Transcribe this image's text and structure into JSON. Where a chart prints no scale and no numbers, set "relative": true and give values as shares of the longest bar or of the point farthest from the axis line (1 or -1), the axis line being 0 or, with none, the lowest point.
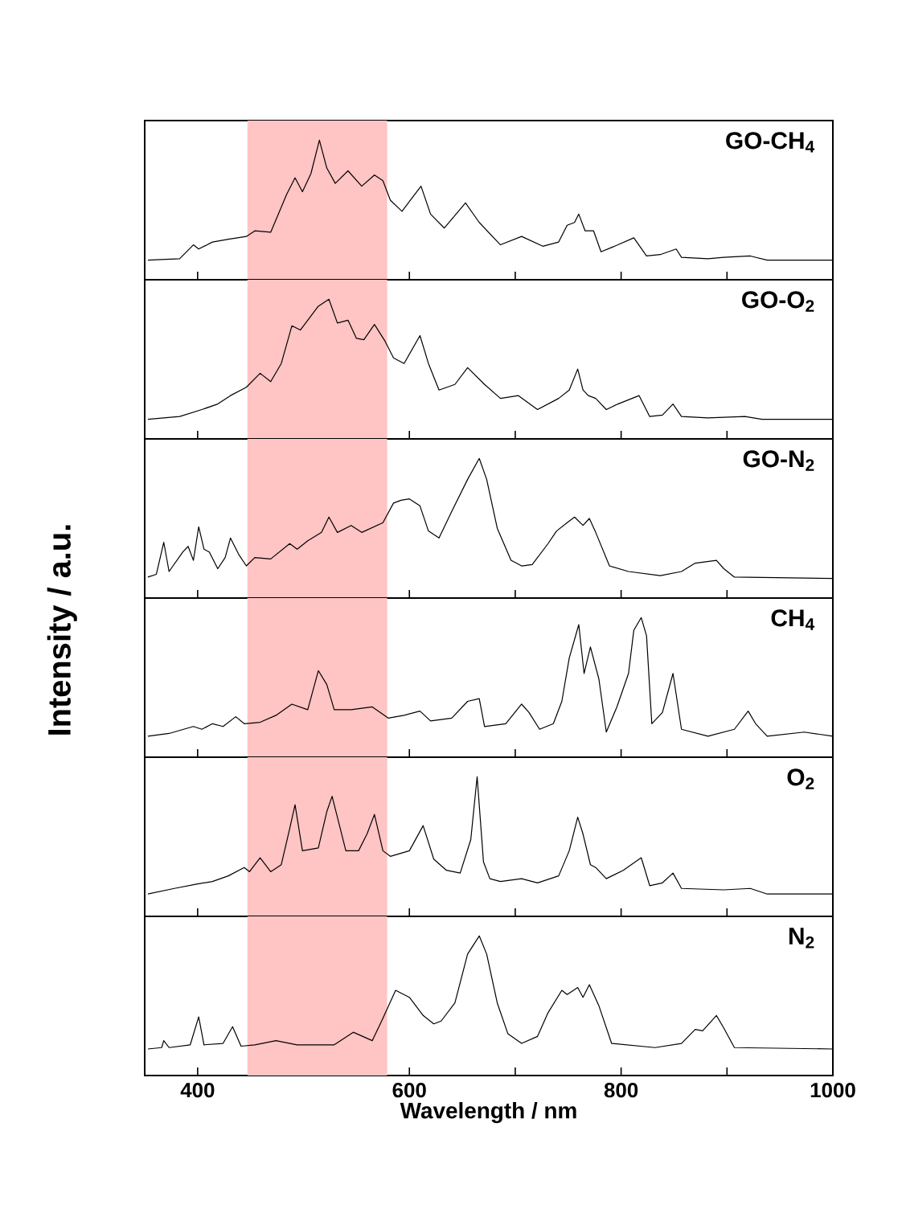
{
  "chart_data": [
    {
      "type": "line",
      "relative": true,
      "xlim": [
        350,
        1000
      ],
      "xticks": [
        400,
        {
          "value": 500,
          "label": null
        },
        600,
        {
          "value": 700,
          "label": null
        },
        800,
        {
          "value": 900,
          "label": null
        },
        1000
      ],
      "tick_labels": false,
      "bands": [
        {
          "axis": "x",
          "from": 447,
          "to": 579,
          "color": "#ffc4c4"
        }
      ],
      "x": [
        353,
        383,
        396,
        401,
        414,
        429,
        446,
        454,
        469,
        484,
        492,
        499,
        507,
        515,
        522,
        530,
        542,
        555,
        567,
        575,
        582,
        593,
        611,
        620,
        633,
        653,
        666,
        686,
        706,
        726,
        741,
        749,
        756,
        760,
        766,
        774,
        781,
        797,
        812,
        824,
        837,
        852,
        857,
        882,
        897,
        922,
        938,
        1000
      ],
      "series": [
        {
          "name": "GO-CH$_{4}$",
          "color": "#000000",
          "values": [
            0.14,
            0.15,
            0.25,
            0.22,
            0.27,
            0.29,
            0.31,
            0.35,
            0.34,
            0.61,
            0.73,
            0.63,
            0.76,
            1.0,
            0.8,
            0.69,
            0.78,
            0.67,
            0.75,
            0.71,
            0.57,
            0.49,
            0.67,
            0.47,
            0.37,
            0.55,
            0.41,
            0.25,
            0.31,
            0.24,
            0.27,
            0.39,
            0.41,
            0.47,
            0.35,
            0.35,
            0.2,
            0.25,
            0.3,
            0.17,
            0.18,
            0.22,
            0.16,
            0.15,
            0.16,
            0.17,
            0.14,
            0.14
          ]
        }
      ]
    },
    {
      "type": "line",
      "relative": true,
      "xlim": [
        350,
        1000
      ],
      "xticks": [
        400,
        {
          "value": 500,
          "label": null
        },
        600,
        {
          "value": 700,
          "label": null
        },
        800,
        {
          "value": 900,
          "label": null
        },
        1000
      ],
      "tick_labels": false,
      "bands": [
        {
          "axis": "x",
          "from": 447,
          "to": 579,
          "color": "#ffc4c4"
        }
      ],
      "x": [
        353,
        383,
        404,
        419,
        431,
        446,
        459,
        469,
        479,
        489,
        497,
        504,
        514,
        524,
        532,
        542,
        550,
        557,
        567,
        577,
        585,
        595,
        610,
        618,
        628,
        643,
        655,
        671,
        686,
        703,
        721,
        741,
        751,
        759,
        764,
        769,
        776,
        786,
        797,
        817,
        827,
        839,
        849,
        857,
        882,
        917,
        933,
        1000
      ],
      "series": [
        {
          "name": "GO-O$_{2}$",
          "color": "#000000",
          "values": [
            0.14,
            0.16,
            0.21,
            0.25,
            0.31,
            0.37,
            0.47,
            0.41,
            0.54,
            0.81,
            0.78,
            0.85,
            0.95,
            1.0,
            0.83,
            0.85,
            0.72,
            0.71,
            0.82,
            0.7,
            0.58,
            0.54,
            0.74,
            0.54,
            0.35,
            0.39,
            0.51,
            0.39,
            0.29,
            0.31,
            0.21,
            0.29,
            0.35,
            0.5,
            0.35,
            0.31,
            0.29,
            0.21,
            0.25,
            0.31,
            0.16,
            0.17,
            0.25,
            0.16,
            0.15,
            0.16,
            0.14,
            0.14
          ]
        }
      ]
    },
    {
      "type": "line",
      "relative": true,
      "xlim": [
        350,
        1000
      ],
      "xticks": [
        400,
        {
          "value": 500,
          "label": null
        },
        600,
        {
          "value": 700,
          "label": null
        },
        800,
        {
          "value": 900,
          "label": null
        },
        1000
      ],
      "tick_labels": false,
      "bands": [
        {
          "axis": "x",
          "from": 447,
          "to": 579,
          "color": "#ffc4c4"
        }
      ],
      "x": [
        353,
        361,
        368,
        373,
        386,
        391,
        396,
        401,
        406,
        411,
        419,
        426,
        431,
        439,
        446,
        454,
        469,
        487,
        494,
        504,
        517,
        524,
        532,
        545,
        555,
        575,
        585,
        592,
        600,
        610,
        618,
        628,
        640,
        655,
        666,
        673,
        683,
        696,
        706,
        716,
        731,
        739,
        749,
        756,
        764,
        770,
        776,
        789,
        807,
        837,
        857,
        870,
        880,
        890,
        897,
        907,
        1000
      ],
      "series": [
        {
          "name": "GO-N$_{2}$",
          "color": "#000000",
          "values": [
            0.15,
            0.17,
            0.4,
            0.19,
            0.33,
            0.37,
            0.27,
            0.51,
            0.35,
            0.33,
            0.21,
            0.29,
            0.43,
            0.31,
            0.23,
            0.29,
            0.28,
            0.39,
            0.35,
            0.41,
            0.47,
            0.58,
            0.47,
            0.52,
            0.47,
            0.54,
            0.68,
            0.7,
            0.71,
            0.66,
            0.48,
            0.43,
            0.62,
            0.85,
            1.0,
            0.85,
            0.5,
            0.27,
            0.23,
            0.24,
            0.39,
            0.48,
            0.54,
            0.58,
            0.52,
            0.57,
            0.47,
            0.23,
            0.19,
            0.16,
            0.19,
            0.25,
            0.26,
            0.27,
            0.21,
            0.15,
            0.14
          ]
        }
      ]
    },
    {
      "type": "line",
      "relative": true,
      "xlim": [
        350,
        1000
      ],
      "xticks": [
        400,
        {
          "value": 500,
          "label": null
        },
        600,
        {
          "value": 700,
          "label": null
        },
        800,
        {
          "value": 900,
          "label": null
        },
        1000
      ],
      "tick_labels": false,
      "ylabel": "Intensity / a.u.",
      "bands": [
        {
          "axis": "x",
          "from": 447,
          "to": 579,
          "color": "#ffc4c4"
        }
      ],
      "x": [
        353,
        373,
        396,
        404,
        414,
        424,
        436,
        444,
        459,
        474,
        489,
        504,
        514,
        522,
        529,
        545,
        565,
        580,
        595,
        610,
        620,
        640,
        655,
        666,
        671,
        691,
        706,
        713,
        723,
        736,
        744,
        751,
        760,
        765,
        771,
        779,
        786,
        796,
        807,
        812,
        819,
        824,
        829,
        839,
        849,
        857,
        882,
        907,
        920,
        927,
        938,
        973,
        1000
      ],
      "series": [
        {
          "name": "CH$_{4}$",
          "color": "#000000",
          "values": [
            0.15,
            0.17,
            0.22,
            0.2,
            0.24,
            0.22,
            0.29,
            0.24,
            0.25,
            0.3,
            0.38,
            0.34,
            0.62,
            0.52,
            0.34,
            0.34,
            0.36,
            0.28,
            0.3,
            0.33,
            0.26,
            0.28,
            0.4,
            0.42,
            0.22,
            0.24,
            0.38,
            0.32,
            0.2,
            0.24,
            0.4,
            0.71,
            0.95,
            0.6,
            0.79,
            0.56,
            0.18,
            0.36,
            0.6,
            0.91,
            1.0,
            0.87,
            0.24,
            0.32,
            0.6,
            0.2,
            0.15,
            0.2,
            0.33,
            0.24,
            0.15,
            0.18,
            0.15
          ]
        }
      ]
    },
    {
      "type": "line",
      "relative": true,
      "xlim": [
        350,
        1000
      ],
      "xticks": [
        400,
        {
          "value": 500,
          "label": null
        },
        600,
        {
          "value": 700,
          "label": null
        },
        800,
        {
          "value": 900,
          "label": null
        },
        1000
      ],
      "tick_labels": false,
      "bands": [
        {
          "axis": "x",
          "from": 447,
          "to": 579,
          "color": "#ffc4c4"
        }
      ],
      "x": [
        353,
        378,
        398,
        414,
        429,
        444,
        449,
        459,
        469,
        479,
        487,
        492,
        499,
        514,
        522,
        527,
        532,
        540,
        552,
        560,
        567,
        575,
        582,
        600,
        613,
        623,
        635,
        648,
        658,
        664,
        670,
        676,
        686,
        706,
        721,
        741,
        751,
        759,
        764,
        771,
        776,
        786,
        802,
        819,
        827,
        839,
        849,
        857,
        897,
        922,
        938,
        1000
      ],
      "series": [
        {
          "name": "O$_{2}$",
          "color": "#000000",
          "values": [
            0.16,
            0.2,
            0.23,
            0.25,
            0.29,
            0.35,
            0.32,
            0.42,
            0.32,
            0.37,
            0.63,
            0.8,
            0.47,
            0.49,
            0.75,
            0.86,
            0.71,
            0.47,
            0.47,
            0.59,
            0.73,
            0.47,
            0.43,
            0.47,
            0.65,
            0.41,
            0.33,
            0.31,
            0.55,
            1.0,
            0.39,
            0.27,
            0.25,
            0.27,
            0.24,
            0.29,
            0.47,
            0.71,
            0.59,
            0.37,
            0.35,
            0.27,
            0.33,
            0.42,
            0.22,
            0.24,
            0.31,
            0.2,
            0.19,
            0.2,
            0.16,
            0.16
          ]
        }
      ]
    },
    {
      "type": "line",
      "relative": true,
      "xlim": [
        350,
        1000
      ],
      "xticks": [
        400,
        {
          "value": 500,
          "label": null
        },
        600,
        {
          "value": 700,
          "label": null
        },
        800,
        {
          "value": 900,
          "label": null
        },
        1000
      ],
      "tick_labels": "x",
      "xlabel": "Wavelength / nm",
      "bands": [
        {
          "axis": "x",
          "from": 447,
          "to": 579,
          "color": "#ffc4c4"
        }
      ],
      "x": [
        353,
        366,
        368,
        373,
        393,
        401,
        406,
        424,
        433,
        441,
        454,
        474,
        494,
        529,
        547,
        565,
        575,
        587,
        600,
        613,
        623,
        630,
        643,
        655,
        666,
        673,
        683,
        693,
        706,
        721,
        731,
        744,
        749,
        759,
        764,
        770,
        779,
        791,
        832,
        857,
        870,
        877,
        890,
        897,
        907,
        1000
      ],
      "series": [
        {
          "name": "N$_{2}$",
          "color": "#000000",
          "values": [
            0.19,
            0.2,
            0.25,
            0.2,
            0.22,
            0.42,
            0.22,
            0.23,
            0.35,
            0.21,
            0.22,
            0.25,
            0.22,
            0.22,
            0.31,
            0.25,
            0.41,
            0.61,
            0.56,
            0.43,
            0.37,
            0.39,
            0.52,
            0.87,
            1.0,
            0.87,
            0.52,
            0.3,
            0.23,
            0.28,
            0.45,
            0.61,
            0.58,
            0.63,
            0.56,
            0.65,
            0.5,
            0.23,
            0.2,
            0.23,
            0.33,
            0.32,
            0.43,
            0.34,
            0.2,
            0.19
          ]
        }
      ]
    }
  ]
}
